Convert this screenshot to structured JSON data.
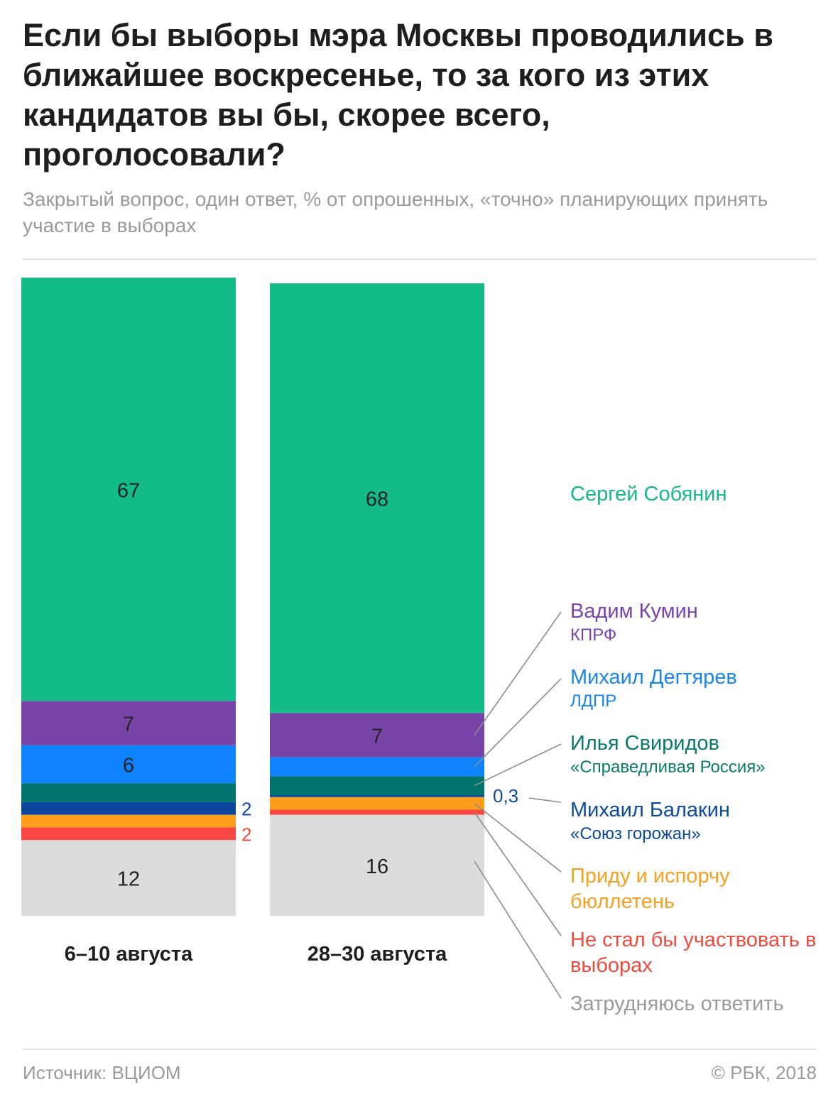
{
  "header": {
    "title": "Если бы выборы мэра Москвы проводились в ближайшее воскресенье, то за кого из этих кандидатов вы бы, скорее всего, проголосовали?",
    "subtitle": "Закрытый вопрос, один ответ, % от опрошенных, «точно» планирующих принять участие в выборах"
  },
  "footer": {
    "source": "Источник: ВЦИОМ",
    "copyright": "© РБК, 2018"
  },
  "chart_data": {
    "type": "bar",
    "stacked": true,
    "categories": [
      "6–10 августа",
      "28–30 августа"
    ],
    "series": [
      {
        "name": "Затрудняюсь ответить",
        "color": "#dcdcdc",
        "text_color": "#9a9a9a",
        "values": [
          12,
          16
        ],
        "labels": [
          "12",
          "16"
        ]
      },
      {
        "name": "Не стал бы участвовать в выборах",
        "color": "#fb4741",
        "text_color": "#f04a3e",
        "values": [
          2,
          0.8
        ],
        "labels": [
          "2",
          ""
        ]
      },
      {
        "name": "Приду и испорчу бюллетень",
        "color": "#ff9e1b",
        "text_color": "#f5a020",
        "values": [
          2,
          2
        ],
        "labels": [
          "",
          ""
        ]
      },
      {
        "name": "Михаил Балакин",
        "party": "«Союз горожан»",
        "color": "#0a46a0",
        "text_color": "#0c4a9e",
        "values": [
          2,
          0.3
        ],
        "labels": [
          "2",
          "0,3"
        ]
      },
      {
        "name": "Илья Свиридов",
        "party": "«Справедливая Россия»",
        "color": "#01756d",
        "text_color": "#0a7a6c",
        "values": [
          3,
          3
        ],
        "labels": [
          "",
          ""
        ]
      },
      {
        "name": "Михаил Дегтярев",
        "party": "ЛДПР",
        "color": "#0f83fc",
        "text_color": "#1a85f0",
        "values": [
          6,
          3
        ],
        "labels": [
          "6",
          ""
        ]
      },
      {
        "name": "Вадим Кумин",
        "party": "КПРФ",
        "color": "#7844a8",
        "text_color": "#7a44aa",
        "values": [
          7,
          7
        ],
        "labels": [
          "7",
          "7"
        ]
      },
      {
        "name": "Сергей Собянин",
        "color": "#12bb87",
        "text_color": "#15b888",
        "values": [
          67,
          68
        ],
        "labels": [
          "67",
          "68"
        ]
      }
    ]
  }
}
